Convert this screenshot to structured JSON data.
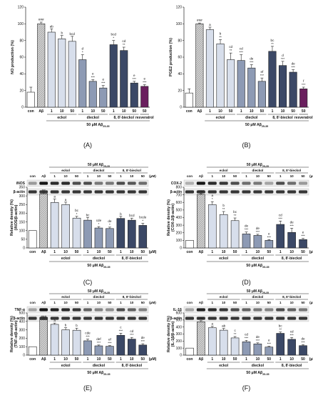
{
  "colors": {
    "control": "#ffffff",
    "abeta": "#c8c8c8",
    "eckol": "#d7deeb",
    "dieckol": "#8d9ab4",
    "bieckol": "#3b4866",
    "resveratrol": "#6a1f5e",
    "axis": "#222222"
  },
  "chart_data": [
    {
      "id": "A",
      "type": "bar",
      "panel_label": "(A)",
      "ylabel": "NO production (%)",
      "ylim": [
        0,
        120
      ],
      "yticks": [
        0,
        20,
        40,
        60,
        80,
        100,
        120
      ],
      "categories": [
        "con",
        "Aβ",
        "1",
        "10",
        "50",
        "1",
        "10",
        "50",
        "1",
        "10",
        "50",
        "50"
      ],
      "values": [
        18,
        100,
        90,
        82,
        79,
        57,
        31,
        23,
        75,
        68,
        29,
        25
      ],
      "errors": [
        6,
        2,
        4,
        4,
        6,
        6,
        2,
        3,
        5,
        4,
        2,
        2
      ],
      "annotations": [
        "",
        "###",
        "ab",
        "b",
        "bcd",
        "d\n*",
        "e\n***",
        "e\n***",
        "bcd\n*",
        "cd\n**",
        "e\n***",
        "e\n***"
      ],
      "fills": [
        "control",
        "abeta",
        "eckol",
        "eckol",
        "eckol",
        "dieckol",
        "dieckol",
        "dieckol",
        "bieckol",
        "bieckol",
        "bieckol",
        "resveratrol"
      ],
      "groups": [
        {
          "label": "eckol",
          "from": 2,
          "to": 4
        },
        {
          "label": "dieckol",
          "from": 5,
          "to": 7
        },
        {
          "label": "8, 8'-bieckol",
          "from": 8,
          "to": 10
        },
        {
          "label": "resveratrol",
          "from": 11,
          "to": 11
        }
      ],
      "treatment_label": "50 μM Aβ25-35"
    },
    {
      "id": "B",
      "type": "bar",
      "panel_label": "(B)",
      "ylabel": "PGE2 production (%)",
      "ylim": [
        0,
        120
      ],
      "yticks": [
        0,
        20,
        40,
        60,
        80,
        100,
        120
      ],
      "categories": [
        "con",
        "Aβ",
        "1",
        "10",
        "50",
        "1",
        "10",
        "50",
        "1",
        "10",
        "50",
        "50"
      ],
      "values": [
        17,
        100,
        93,
        76,
        57,
        56,
        47,
        31,
        67,
        50,
        42,
        22
      ],
      "errors": [
        5,
        1,
        3,
        5,
        8,
        7,
        4,
        4,
        6,
        5,
        3,
        2
      ],
      "annotations": [
        "",
        "###",
        "a",
        "b\n**",
        "cd\n**",
        "cd\n***",
        "de\n***",
        "ef\n***",
        "bc\n**",
        "d\n***",
        "de\n***",
        "f\n***"
      ],
      "fills": [
        "control",
        "abeta",
        "eckol",
        "eckol",
        "eckol",
        "dieckol",
        "dieckol",
        "dieckol",
        "bieckol",
        "bieckol",
        "bieckol",
        "resveratrol"
      ],
      "groups": [
        {
          "label": "eckol",
          "from": 2,
          "to": 4
        },
        {
          "label": "dieckol",
          "from": 5,
          "to": 7
        },
        {
          "label": "8, 8'-bieckol",
          "from": 8,
          "to": 10
        },
        {
          "label": "resveratrol",
          "from": 11,
          "to": 11
        }
      ],
      "treatment_label": "50 μM Aβ25-35"
    },
    {
      "id": "C",
      "type": "bar",
      "panel_label": "(C)",
      "ylabel": "Relative density (%)\n(iNOS/β-actin)",
      "ylim": [
        0,
        350
      ],
      "yticks": [
        0,
        50,
        100,
        150,
        200,
        250,
        300,
        350
      ],
      "categories": [
        "con",
        "Aβ",
        "1",
        "10",
        "50",
        "1",
        "10",
        "50",
        "1",
        "10",
        "50"
      ],
      "values": [
        100,
        312,
        262,
        250,
        172,
        160,
        115,
        112,
        170,
        160,
        130
      ],
      "errors": [
        0,
        6,
        20,
        14,
        10,
        16,
        8,
        8,
        12,
        12,
        12
      ],
      "annotations": [
        "",
        "##",
        "a",
        "a",
        "bc\n*",
        "bc",
        "cde\n*",
        "de\n*",
        "b",
        "bcd",
        "bcde\n*"
      ],
      "fills": [
        "control",
        "abeta",
        "eckol",
        "eckol",
        "eckol",
        "dieckol",
        "dieckol",
        "dieckol",
        "bieckol",
        "bieckol",
        "bieckol"
      ],
      "groups": [
        {
          "label": "eckol",
          "from": 2,
          "to": 4
        },
        {
          "label": "dieckol",
          "from": 5,
          "to": 7
        },
        {
          "label": "8, 8'-bieckol",
          "from": 8,
          "to": 10
        }
      ],
      "unit_label": "(μM)",
      "treatment_label": "50 μM Aβ25-35",
      "blot": {
        "header": "50 μM Aβ25-35",
        "groups": [
          "eckol",
          "dieckol",
          "8, 8'-bieckol"
        ],
        "lanes": [
          "con",
          "Aβ",
          "1",
          "10",
          "50",
          "1",
          "10",
          "50",
          "1",
          "10",
          "50"
        ],
        "unit": "(μM)",
        "rows": [
          {
            "label": "iNOS",
            "intensity": [
              0.35,
              0.95,
              0.85,
              0.85,
              0.7,
              0.7,
              0.5,
              0.5,
              0.7,
              0.65,
              0.55
            ]
          },
          {
            "label": "β-actin",
            "intensity": [
              0.8,
              0.8,
              0.8,
              0.8,
              0.8,
              0.8,
              0.8,
              0.8,
              0.8,
              0.8,
              0.8
            ]
          }
        ]
      }
    },
    {
      "id": "D",
      "type": "bar",
      "panel_label": "(D)",
      "ylabel": "Relative density (%)\n(COX-2/β-actin)",
      "ylim": [
        0,
        800
      ],
      "yticks": [
        0,
        100,
        200,
        300,
        400,
        500,
        600,
        700,
        800
      ],
      "categories": [
        "con",
        "Aβ",
        "1",
        "10",
        "50",
        "1",
        "10",
        "50",
        "1",
        "10",
        "50"
      ],
      "values": [
        100,
        705,
        570,
        440,
        360,
        185,
        165,
        100,
        310,
        205,
        110
      ],
      "errors": [
        0,
        10,
        40,
        40,
        35,
        25,
        15,
        10,
        45,
        55,
        15
      ],
      "annotations": [
        "",
        "###",
        "a\n*",
        "b\n**",
        "bc\n**",
        "de\n***",
        "de\n***",
        "e\n***",
        "cd\n***",
        "de\n***",
        "e\n***"
      ],
      "fills": [
        "control",
        "abeta",
        "eckol",
        "eckol",
        "eckol",
        "dieckol",
        "dieckol",
        "dieckol",
        "bieckol",
        "bieckol",
        "bieckol"
      ],
      "groups": [
        {
          "label": "eckol",
          "from": 2,
          "to": 4
        },
        {
          "label": "dieckol",
          "from": 5,
          "to": 7
        },
        {
          "label": "8, 8'-bieckol",
          "from": 8,
          "to": 10
        }
      ],
      "unit_label": "(μM)",
      "treatment_label": "50 μM Aβ25-35",
      "blot": {
        "header": "50 μM Aβ25-35",
        "groups": [
          "eckol",
          "dieckol",
          "8, 8'-bieckol"
        ],
        "lanes": [
          "con",
          "Aβ",
          "1",
          "10",
          "50",
          "1",
          "10",
          "50",
          "1",
          "10",
          "50"
        ],
        "unit": "(μM)",
        "rows": [
          {
            "label": "COX-2",
            "intensity": [
              0.25,
              0.95,
              0.85,
              0.8,
              0.7,
              0.55,
              0.5,
              0.3,
              0.7,
              0.55,
              0.35
            ]
          },
          {
            "label": "β-actin",
            "intensity": [
              0.8,
              0.8,
              0.8,
              0.8,
              0.8,
              0.8,
              0.8,
              0.8,
              0.8,
              0.8,
              0.8
            ]
          }
        ]
      }
    },
    {
      "id": "E",
      "type": "bar",
      "panel_label": "(E)",
      "ylabel": "Relative density (%)\n(TNF-α/β-actin)",
      "ylim": [
        0,
        500
      ],
      "yticks": [
        0,
        100,
        200,
        300,
        400,
        500
      ],
      "categories": [
        "con",
        "Aβ",
        "1",
        "10",
        "50",
        "1",
        "10",
        "50",
        "1",
        "10",
        "50"
      ],
      "values": [
        100,
        420,
        365,
        300,
        295,
        170,
        110,
        105,
        235,
        190,
        120
      ],
      "errors": [
        0,
        8,
        15,
        25,
        25,
        20,
        10,
        8,
        25,
        20,
        15
      ],
      "annotations": [
        "",
        "###",
        "a",
        "b",
        "b",
        "cde\n***",
        "def\n***",
        "ef\n***",
        "c\n***",
        "cd\n***",
        "de\n***"
      ],
      "fills": [
        "control",
        "abeta",
        "eckol",
        "eckol",
        "eckol",
        "dieckol",
        "dieckol",
        "dieckol",
        "bieckol",
        "bieckol",
        "bieckol"
      ],
      "groups": [
        {
          "label": "eckol",
          "from": 2,
          "to": 4
        },
        {
          "label": "dieckol",
          "from": 5,
          "to": 7
        },
        {
          "label": "8, 8'-bieckol",
          "from": 8,
          "to": 10
        }
      ],
      "unit_label": "(μM)",
      "treatment_label": "50 μM Aβ25-35",
      "blot": {
        "header": "50 μM Aβ25-35",
        "groups": [
          "eckol",
          "dieckol",
          "8, 8'-bieckol"
        ],
        "lanes": [
          "con",
          "Aβ",
          "1",
          "10",
          "50",
          "1",
          "10",
          "50",
          "1",
          "10",
          "50"
        ],
        "unit": "(μM)",
        "rows": [
          {
            "label": "TNF-α",
            "intensity": [
              0.3,
              0.95,
              0.9,
              0.85,
              0.8,
              0.6,
              0.45,
              0.4,
              0.7,
              0.6,
              0.45
            ]
          },
          {
            "label": "β-actin",
            "intensity": [
              0.8,
              0.8,
              0.8,
              0.8,
              0.8,
              0.8,
              0.8,
              0.8,
              0.8,
              0.8,
              0.8
            ]
          }
        ]
      }
    },
    {
      "id": "F",
      "type": "bar",
      "panel_label": "(F)",
      "ylabel": "Relative density (%)\n(IL-1β/β-actin)",
      "ylim": [
        0,
        600
      ],
      "yticks": [
        0,
        100,
        200,
        300,
        400,
        500,
        600
      ],
      "categories": [
        "con",
        "Aβ",
        "1",
        "10",
        "50",
        "1",
        "10",
        "50",
        "1",
        "10",
        "50"
      ],
      "values": [
        100,
        475,
        390,
        355,
        245,
        190,
        160,
        115,
        310,
        225,
        135
      ],
      "errors": [
        0,
        15,
        20,
        25,
        20,
        20,
        15,
        10,
        20,
        25,
        15
      ],
      "annotations": [
        "",
        "###",
        "a",
        "ab",
        "c\n**",
        "cd\n***",
        "de\n***",
        "e\n***",
        "bc\n**",
        "cd\n***",
        "de\n***"
      ],
      "fills": [
        "control",
        "abeta",
        "eckol",
        "eckol",
        "eckol",
        "dieckol",
        "dieckol",
        "dieckol",
        "bieckol",
        "bieckol",
        "bieckol"
      ],
      "groups": [
        {
          "label": "eckol",
          "from": 2,
          "to": 4
        },
        {
          "label": "dieckol",
          "from": 5,
          "to": 7
        },
        {
          "label": "8, 8'-bieckol",
          "from": 8,
          "to": 10
        }
      ],
      "unit_label": "(μM)",
      "treatment_label": "50 μM Aβ25-35",
      "blot": {
        "header": "50 μM Aβ25-35",
        "groups": [
          "eckol",
          "dieckol",
          "8, 8'-bieckol"
        ],
        "lanes": [
          "con",
          "Aβ",
          "1",
          "10",
          "50",
          "1",
          "10",
          "50",
          "1",
          "10",
          "50"
        ],
        "unit": "(μM)",
        "rows": [
          {
            "label": "IL-1β",
            "intensity": [
              0.3,
              0.9,
              0.85,
              0.8,
              0.7,
              0.6,
              0.5,
              0.45,
              0.7,
              0.6,
              0.5
            ]
          },
          {
            "label": "β-actin",
            "intensity": [
              0.8,
              0.8,
              0.8,
              0.8,
              0.8,
              0.8,
              0.8,
              0.8,
              0.8,
              0.8,
              0.8
            ]
          }
        ]
      }
    }
  ]
}
